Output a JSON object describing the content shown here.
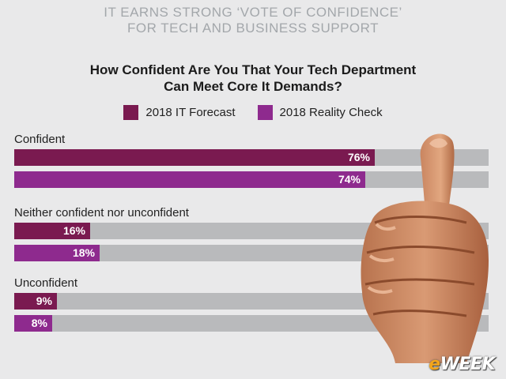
{
  "header": {
    "line1": "IT EARNS STRONG ‘VOTE OF CONFIDENCE’",
    "line2": "FOR TECH AND BUSINESS SUPPORT"
  },
  "logo": {
    "prefix": "e",
    "suffix": "WEEK"
  },
  "colors": {
    "forecast": "#7a1a50",
    "reality": "#8e2a8e",
    "track": "#b9babc",
    "background": "#e9e9ea"
  },
  "chart_data": {
    "type": "bar",
    "orientation": "horizontal",
    "title_line1": "How Confident Are You That Your Tech Department",
    "title_line2": "Can Meet Core It Demands?",
    "xlabel": "",
    "ylabel": "",
    "xlim": [
      0,
      100
    ],
    "grid": false,
    "legend_position": "top",
    "categories": [
      "Confident",
      "Neither confident nor unconfident",
      "Unconfident"
    ],
    "series": [
      {
        "name": "2018 IT Forecast",
        "values": [
          76,
          16,
          9
        ],
        "labels": [
          "76%",
          "16%",
          "9%"
        ]
      },
      {
        "name": "2018 Reality Check",
        "values": [
          74,
          18,
          8
        ],
        "labels": [
          "74%",
          "18%",
          "8%"
        ]
      }
    ]
  }
}
